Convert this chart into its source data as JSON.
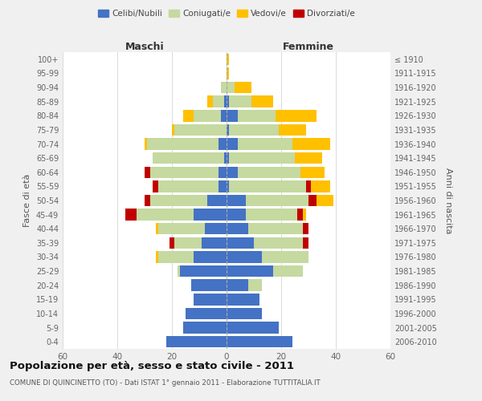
{
  "age_groups": [
    "0-4",
    "5-9",
    "10-14",
    "15-19",
    "20-24",
    "25-29",
    "30-34",
    "35-39",
    "40-44",
    "45-49",
    "50-54",
    "55-59",
    "60-64",
    "65-69",
    "70-74",
    "75-79",
    "80-84",
    "85-89",
    "90-94",
    "95-99",
    "100+"
  ],
  "birth_years": [
    "2006-2010",
    "2001-2005",
    "1996-2000",
    "1991-1995",
    "1986-1990",
    "1981-1985",
    "1976-1980",
    "1971-1975",
    "1966-1970",
    "1961-1965",
    "1956-1960",
    "1951-1955",
    "1946-1950",
    "1941-1945",
    "1936-1940",
    "1931-1935",
    "1926-1930",
    "1921-1925",
    "1916-1920",
    "1911-1915",
    "≤ 1910"
  ],
  "colors": {
    "celibi": "#4472c4",
    "coniugati": "#c5d9a0",
    "vedovi": "#ffc000",
    "divorziati": "#c00000"
  },
  "maschi": {
    "celibi": [
      22,
      16,
      15,
      12,
      13,
      17,
      12,
      9,
      8,
      12,
      7,
      3,
      3,
      1,
      3,
      0,
      2,
      1,
      0,
      0,
      0
    ],
    "coniugati": [
      0,
      0,
      0,
      0,
      0,
      1,
      13,
      10,
      17,
      21,
      21,
      22,
      25,
      26,
      26,
      19,
      10,
      4,
      2,
      0,
      0
    ],
    "vedovi": [
      0,
      0,
      0,
      0,
      0,
      0,
      1,
      0,
      1,
      0,
      0,
      0,
      0,
      0,
      1,
      1,
      4,
      2,
      0,
      0,
      0
    ],
    "divorziati": [
      0,
      0,
      0,
      0,
      0,
      0,
      0,
      2,
      0,
      4,
      2,
      2,
      2,
      0,
      0,
      0,
      0,
      0,
      0,
      0,
      0
    ]
  },
  "femmine": {
    "celibi": [
      24,
      19,
      13,
      12,
      8,
      17,
      13,
      10,
      8,
      7,
      7,
      1,
      4,
      1,
      4,
      1,
      4,
      1,
      0,
      0,
      0
    ],
    "coniugati": [
      0,
      0,
      0,
      0,
      5,
      11,
      17,
      18,
      20,
      19,
      23,
      28,
      23,
      24,
      20,
      18,
      14,
      8,
      3,
      0,
      0
    ],
    "vedovi": [
      0,
      0,
      0,
      0,
      0,
      0,
      0,
      0,
      0,
      1,
      6,
      7,
      9,
      10,
      14,
      10,
      15,
      8,
      6,
      1,
      1
    ],
    "divorziati": [
      0,
      0,
      0,
      0,
      0,
      0,
      0,
      2,
      2,
      2,
      3,
      2,
      0,
      0,
      0,
      0,
      0,
      0,
      0,
      0,
      0
    ]
  },
  "xlim": 60,
  "title": "Popolazione per età, sesso e stato civile - 2011",
  "subtitle": "COMUNE DI QUINCINETTO (TO) - Dati ISTAT 1° gennaio 2011 - Elaborazione TUTTITALIA.IT",
  "ylabel_left": "Fasce di età",
  "ylabel_right": "Anni di nascita",
  "xlabel_left": "Maschi",
  "xlabel_right": "Femmine",
  "bg_color": "#f0f0f0",
  "plot_bg": "#ffffff",
  "grid_color": "#cccccc",
  "maschi_header_color": "#333333",
  "femmine_header_color": "#333333"
}
